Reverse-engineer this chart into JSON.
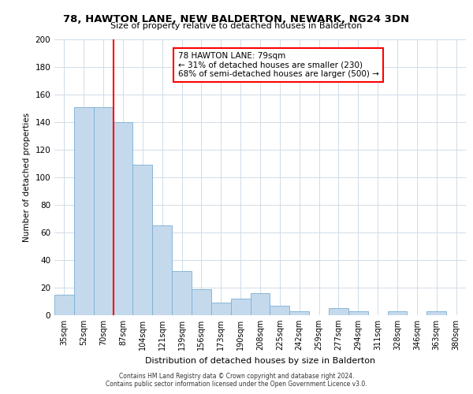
{
  "title": "78, HAWTON LANE, NEW BALDERTON, NEWARK, NG24 3DN",
  "subtitle": "Size of property relative to detached houses in Balderton",
  "xlabel": "Distribution of detached houses by size in Balderton",
  "ylabel": "Number of detached properties",
  "bar_color": "#c5d9ed",
  "bar_edge_color": "#7aafd4",
  "categories": [
    "35sqm",
    "52sqm",
    "70sqm",
    "87sqm",
    "104sqm",
    "121sqm",
    "139sqm",
    "156sqm",
    "173sqm",
    "190sqm",
    "208sqm",
    "225sqm",
    "242sqm",
    "259sqm",
    "277sqm",
    "294sqm",
    "311sqm",
    "328sqm",
    "346sqm",
    "363sqm",
    "380sqm"
  ],
  "values": [
    15,
    151,
    151,
    140,
    109,
    65,
    32,
    19,
    9,
    12,
    16,
    7,
    3,
    0,
    5,
    3,
    0,
    3,
    0,
    3,
    0
  ],
  "ylim": [
    0,
    200
  ],
  "yticks": [
    0,
    20,
    40,
    60,
    80,
    100,
    120,
    140,
    160,
    180,
    200
  ],
  "annotation_title": "78 HAWTON LANE: 79sqm",
  "annotation_line1": "← 31% of detached houses are smaller (230)",
  "annotation_line2": "68% of semi-detached houses are larger (500) →",
  "footer_line1": "Contains HM Land Registry data © Crown copyright and database right 2024.",
  "footer_line2": "Contains public sector information licensed under the Open Government Licence v3.0.",
  "background_color": "#ffffff",
  "grid_color": "#d0dce8"
}
